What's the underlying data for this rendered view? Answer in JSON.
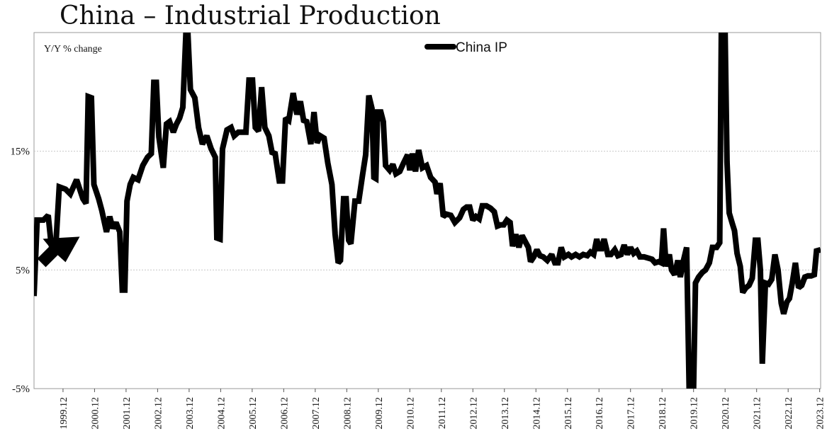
{
  "chart_data": {
    "type": "line",
    "title": "China – Industrial Production",
    "ylabel": "Y/Y % change",
    "xlabel": "",
    "ylim": [
      -5,
      25
    ],
    "xlim": [
      1999.0,
      2023.95
    ],
    "yticks": [
      {
        "value": 15,
        "label": "15%"
      },
      {
        "value": 5,
        "label": "5%"
      },
      {
        "value": -5,
        "label": "-5%"
      }
    ],
    "xticks": [
      {
        "value": 1999.92,
        "label": "1999.12"
      },
      {
        "value": 2000.92,
        "label": "2000.12"
      },
      {
        "value": 2001.92,
        "label": "2001.12"
      },
      {
        "value": 2002.92,
        "label": "2002.12"
      },
      {
        "value": 2003.92,
        "label": "2003.12"
      },
      {
        "value": 2004.92,
        "label": "2004.12"
      },
      {
        "value": 2005.92,
        "label": "2005.12"
      },
      {
        "value": 2006.92,
        "label": "2006.12"
      },
      {
        "value": 2007.92,
        "label": "2007.12"
      },
      {
        "value": 2008.92,
        "label": "2008.12"
      },
      {
        "value": 2009.92,
        "label": "2009.12"
      },
      {
        "value": 2010.92,
        "label": "2010.12"
      },
      {
        "value": 2011.92,
        "label": "2011.12"
      },
      {
        "value": 2012.92,
        "label": "2012.12"
      },
      {
        "value": 2013.92,
        "label": "2013.12"
      },
      {
        "value": 2014.92,
        "label": "2014.12"
      },
      {
        "value": 2015.92,
        "label": "2015.12"
      },
      {
        "value": 2016.92,
        "label": "2016.12"
      },
      {
        "value": 2017.92,
        "label": "2017.12"
      },
      {
        "value": 2018.92,
        "label": "2018.12"
      },
      {
        "value": 2019.92,
        "label": "2019.12"
      },
      {
        "value": 2020.92,
        "label": "2020.12"
      },
      {
        "value": 2021.92,
        "label": "2021.12"
      },
      {
        "value": 2022.92,
        "label": "2022.12"
      },
      {
        "value": 2023.92,
        "label": "2023.12"
      }
    ],
    "grid_y": true,
    "legend": {
      "position": "top-center"
    },
    "annotation": {
      "type": "arrow",
      "direction": "up-right",
      "at": [
        2000.45,
        7.8
      ]
    },
    "series": [
      {
        "name": "China IP",
        "color": "#000000",
        "points": [
          [
            1999.0,
            2.8
          ],
          [
            1999.1,
            9.2
          ],
          [
            1999.3,
            9.2
          ],
          [
            1999.45,
            9.6
          ],
          [
            1999.55,
            7.0
          ],
          [
            1999.7,
            7.4
          ],
          [
            1999.8,
            12.0
          ],
          [
            2000.0,
            11.8
          ],
          [
            2000.15,
            11.4
          ],
          [
            2000.35,
            12.6
          ],
          [
            2000.55,
            11.0
          ],
          [
            2000.65,
            10.6
          ],
          [
            2000.72,
            19.6
          ],
          [
            2000.82,
            19.5
          ],
          [
            2000.9,
            12.2
          ],
          [
            2001.05,
            11.0
          ],
          [
            2001.15,
            10.0
          ],
          [
            2001.3,
            8.2
          ],
          [
            2001.4,
            9.5
          ],
          [
            2001.5,
            8.5
          ],
          [
            2001.6,
            9.0
          ],
          [
            2001.72,
            8.2
          ],
          [
            2001.8,
            3.3
          ],
          [
            2001.88,
            3.3
          ],
          [
            2001.95,
            10.8
          ],
          [
            2002.05,
            12.2
          ],
          [
            2002.15,
            12.8
          ],
          [
            2002.3,
            12.6
          ],
          [
            2002.45,
            13.8
          ],
          [
            2002.6,
            14.5
          ],
          [
            2002.72,
            14.8
          ],
          [
            2002.8,
            20.8
          ],
          [
            2002.88,
            20.8
          ],
          [
            2002.96,
            16.2
          ],
          [
            2003.1,
            13.6
          ],
          [
            2003.2,
            17.3
          ],
          [
            2003.3,
            17.5
          ],
          [
            2003.42,
            16.6
          ],
          [
            2003.52,
            17.3
          ],
          [
            2003.62,
            17.8
          ],
          [
            2003.72,
            18.7
          ],
          [
            2003.82,
            25.0
          ],
          [
            2003.88,
            25.0
          ],
          [
            2003.96,
            20.2
          ],
          [
            2004.1,
            19.5
          ],
          [
            2004.22,
            17.0
          ],
          [
            2004.34,
            15.6
          ],
          [
            2004.48,
            16.3
          ],
          [
            2004.62,
            15.2
          ],
          [
            2004.75,
            14.5
          ],
          [
            2004.8,
            7.7
          ],
          [
            2004.9,
            7.6
          ],
          [
            2004.98,
            15.2
          ],
          [
            2005.12,
            16.8
          ],
          [
            2005.25,
            17.0
          ],
          [
            2005.35,
            16.3
          ],
          [
            2005.48,
            16.6
          ],
          [
            2005.6,
            16.6
          ],
          [
            2005.72,
            16.6
          ],
          [
            2005.82,
            21.0
          ],
          [
            2005.93,
            21.0
          ],
          [
            2006.02,
            17.0
          ],
          [
            2006.12,
            16.7
          ],
          [
            2006.22,
            20.4
          ],
          [
            2006.32,
            17.0
          ],
          [
            2006.45,
            16.3
          ],
          [
            2006.55,
            14.9
          ],
          [
            2006.65,
            14.8
          ],
          [
            2006.78,
            12.5
          ],
          [
            2006.88,
            12.5
          ],
          [
            2006.98,
            17.8
          ],
          [
            2007.08,
            17.6
          ],
          [
            2007.22,
            19.9
          ],
          [
            2007.34,
            18.1
          ],
          [
            2007.45,
            19.2
          ],
          [
            2007.55,
            17.6
          ],
          [
            2007.65,
            17.5
          ],
          [
            2007.78,
            15.6
          ],
          [
            2007.88,
            18.3
          ],
          [
            2007.98,
            15.7
          ],
          [
            2008.08,
            16.3
          ],
          [
            2008.2,
            16.1
          ],
          [
            2008.32,
            14.0
          ],
          [
            2008.45,
            12.2
          ],
          [
            2008.55,
            8.0
          ],
          [
            2008.65,
            5.6
          ],
          [
            2008.72,
            5.8
          ],
          [
            2008.82,
            11.0
          ],
          [
            2008.9,
            11.0
          ],
          [
            2008.98,
            7.5
          ],
          [
            2009.05,
            7.2
          ],
          [
            2009.18,
            10.8
          ],
          [
            2009.3,
            10.8
          ],
          [
            2009.42,
            13.0
          ],
          [
            2009.52,
            14.7
          ],
          [
            2009.62,
            19.7
          ],
          [
            2009.72,
            18.6
          ],
          [
            2009.78,
            12.8
          ],
          [
            2009.84,
            12.7
          ],
          [
            2009.9,
            18.3
          ],
          [
            2010.0,
            18.3
          ],
          [
            2010.08,
            17.5
          ],
          [
            2010.15,
            13.8
          ],
          [
            2010.28,
            13.4
          ],
          [
            2010.38,
            13.9
          ],
          [
            2010.48,
            13.1
          ],
          [
            2010.6,
            13.3
          ],
          [
            2010.72,
            14.0
          ],
          [
            2010.85,
            14.7
          ],
          [
            2010.92,
            13.4
          ],
          [
            2011.0,
            14.8
          ],
          [
            2011.1,
            13.3
          ],
          [
            2011.2,
            15.1
          ],
          [
            2011.32,
            13.6
          ],
          [
            2011.45,
            13.8
          ],
          [
            2011.58,
            12.8
          ],
          [
            2011.72,
            12.4
          ],
          [
            2011.78,
            11.4
          ],
          [
            2011.88,
            12.3
          ],
          [
            2011.98,
            9.5
          ],
          [
            2012.08,
            9.7
          ],
          [
            2012.22,
            9.6
          ],
          [
            2012.35,
            9.0
          ],
          [
            2012.5,
            9.4
          ],
          [
            2012.62,
            10.1
          ],
          [
            2012.72,
            10.3
          ],
          [
            2012.82,
            10.3
          ],
          [
            2012.92,
            9.2
          ],
          [
            2013.02,
            9.5
          ],
          [
            2013.12,
            9.3
          ],
          [
            2013.22,
            10.4
          ],
          [
            2013.35,
            10.4
          ],
          [
            2013.48,
            10.2
          ],
          [
            2013.6,
            9.9
          ],
          [
            2013.7,
            8.7
          ],
          [
            2013.8,
            8.8
          ],
          [
            2013.9,
            8.8
          ],
          [
            2014.0,
            9.2
          ],
          [
            2014.1,
            9.0
          ],
          [
            2014.18,
            7.0
          ],
          [
            2014.28,
            8.0
          ],
          [
            2014.38,
            6.9
          ],
          [
            2014.48,
            7.9
          ],
          [
            2014.58,
            7.4
          ],
          [
            2014.68,
            6.9
          ],
          [
            2014.75,
            5.7
          ],
          [
            2014.85,
            6.1
          ],
          [
            2014.95,
            6.7
          ],
          [
            2015.05,
            6.2
          ],
          [
            2015.15,
            6.1
          ],
          [
            2015.28,
            5.8
          ],
          [
            2015.42,
            6.3
          ],
          [
            2015.52,
            5.6
          ],
          [
            2015.62,
            5.6
          ],
          [
            2015.72,
            6.9
          ],
          [
            2015.82,
            6.1
          ],
          [
            2015.95,
            6.3
          ],
          [
            2016.05,
            6.1
          ],
          [
            2016.18,
            6.3
          ],
          [
            2016.3,
            6.1
          ],
          [
            2016.42,
            6.3
          ],
          [
            2016.55,
            6.2
          ],
          [
            2016.65,
            6.5
          ],
          [
            2016.75,
            6.3
          ],
          [
            2016.85,
            7.6
          ],
          [
            2016.92,
            6.8
          ],
          [
            2017.0,
            6.8
          ],
          [
            2017.08,
            7.6
          ],
          [
            2017.2,
            6.3
          ],
          [
            2017.3,
            6.3
          ],
          [
            2017.42,
            6.7
          ],
          [
            2017.52,
            6.2
          ],
          [
            2017.62,
            6.3
          ],
          [
            2017.72,
            7.1
          ],
          [
            2017.82,
            6.3
          ],
          [
            2017.92,
            6.9
          ],
          [
            2018.02,
            6.4
          ],
          [
            2018.12,
            6.6
          ],
          [
            2018.22,
            6.1
          ],
          [
            2018.35,
            6.1
          ],
          [
            2018.48,
            6.0
          ],
          [
            2018.6,
            5.9
          ],
          [
            2018.7,
            5.6
          ],
          [
            2018.82,
            5.7
          ],
          [
            2018.9,
            5.6
          ],
          [
            2018.97,
            8.5
          ],
          [
            2019.05,
            5.3
          ],
          [
            2019.15,
            6.3
          ],
          [
            2019.22,
            5.0
          ],
          [
            2019.32,
            4.6
          ],
          [
            2019.42,
            5.8
          ],
          [
            2019.5,
            4.4
          ],
          [
            2019.6,
            5.8
          ],
          [
            2019.7,
            6.9
          ],
          [
            2019.78,
            -5.0
          ],
          [
            2019.92,
            -5.0
          ],
          [
            2019.98,
            3.9
          ],
          [
            2020.08,
            4.4
          ],
          [
            2020.2,
            4.8
          ],
          [
            2020.3,
            5.0
          ],
          [
            2020.42,
            5.6
          ],
          [
            2020.52,
            6.9
          ],
          [
            2020.65,
            6.9
          ],
          [
            2020.75,
            7.3
          ],
          [
            2020.8,
            25.0
          ],
          [
            2020.92,
            25.0
          ],
          [
            2020.98,
            14.1
          ],
          [
            2021.05,
            9.8
          ],
          [
            2021.15,
            8.9
          ],
          [
            2021.22,
            8.3
          ],
          [
            2021.3,
            6.4
          ],
          [
            2021.4,
            5.3
          ],
          [
            2021.48,
            3.1
          ],
          [
            2021.58,
            3.5
          ],
          [
            2021.68,
            3.7
          ],
          [
            2021.78,
            4.3
          ],
          [
            2021.88,
            7.5
          ],
          [
            2021.96,
            7.5
          ],
          [
            2022.04,
            5.0
          ],
          [
            2022.1,
            -2.9
          ],
          [
            2022.2,
            3.9
          ],
          [
            2022.3,
            3.8
          ],
          [
            2022.4,
            4.2
          ],
          [
            2022.5,
            6.3
          ],
          [
            2022.6,
            5.0
          ],
          [
            2022.7,
            2.2
          ],
          [
            2022.78,
            1.3
          ],
          [
            2022.88,
            2.3
          ],
          [
            2022.96,
            2.6
          ],
          [
            2023.05,
            3.9
          ],
          [
            2023.15,
            5.6
          ],
          [
            2023.25,
            3.5
          ],
          [
            2023.35,
            3.7
          ],
          [
            2023.45,
            4.4
          ],
          [
            2023.55,
            4.5
          ],
          [
            2023.65,
            4.5
          ],
          [
            2023.75,
            4.6
          ],
          [
            2023.82,
            6.6
          ],
          [
            2023.95,
            6.7
          ]
        ]
      }
    ]
  }
}
